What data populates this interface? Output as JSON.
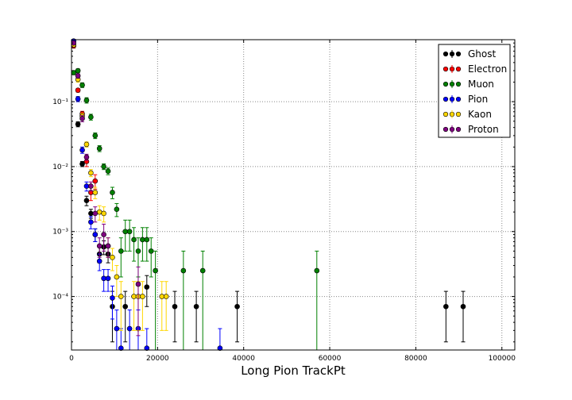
{
  "chart_data": {
    "type": "scatter",
    "title": "",
    "xlabel": "Long Pion TrackPt",
    "ylabel": "",
    "xlim": [
      0,
      103000
    ],
    "ylim": [
      1.5e-05,
      0.9
    ],
    "yscale": "log",
    "grid": true,
    "legend_position": "top-right",
    "x_ticks": [
      0,
      20000,
      40000,
      60000,
      80000,
      100000
    ],
    "x_tick_labels": [
      "0",
      "20000",
      "40000",
      "60000",
      "80000",
      "100000"
    ],
    "y_ticks": [
      0.0001,
      0.001,
      0.01,
      0.1
    ],
    "y_tick_labels": [
      "10⁻⁴",
      "10⁻³",
      "10⁻²",
      "10⁻¹"
    ],
    "series": [
      {
        "name": "Ghost",
        "color": "#000000",
        "points": [
          [
            1500,
            0.045,
            0.004
          ],
          [
            2500,
            0.011,
            0.001
          ],
          [
            3500,
            0.003,
            0.0005
          ],
          [
            4500,
            0.0019,
            0.0003
          ],
          [
            5500,
            0.0009,
            0.0002
          ],
          [
            6500,
            0.00045,
            0.00012
          ],
          [
            7500,
            0.00058,
            0.00014
          ],
          [
            8500,
            0.00045,
            0.00012
          ],
          [
            9500,
            7e-05,
            5e-05
          ],
          [
            12500,
            7e-05,
            5e-05
          ],
          [
            17500,
            0.00014,
            7e-05
          ],
          [
            24000,
            7e-05,
            5e-05
          ],
          [
            29000,
            7e-05,
            5e-05
          ],
          [
            38500,
            7e-05,
            5e-05
          ],
          [
            87000,
            7e-05,
            5e-05
          ],
          [
            91000,
            7e-05,
            5e-05
          ]
        ]
      },
      {
        "name": "Electron",
        "color": "#ff0000",
        "points": [
          [
            500,
            0.72,
            0.05
          ],
          [
            1500,
            0.15,
            0.01
          ],
          [
            2500,
            0.065,
            0.006
          ],
          [
            3500,
            0.012,
            0.002
          ],
          [
            4500,
            0.004,
            0.001
          ],
          [
            5500,
            0.006,
            0.0015
          ]
        ]
      },
      {
        "name": "Muon",
        "color": "#008000",
        "points": [
          [
            500,
            0.28,
            0.02
          ],
          [
            1500,
            0.3,
            0.02
          ],
          [
            2500,
            0.18,
            0.015
          ],
          [
            3500,
            0.105,
            0.01
          ],
          [
            4500,
            0.058,
            0.006
          ],
          [
            5500,
            0.03,
            0.003
          ],
          [
            6500,
            0.019,
            0.002
          ],
          [
            7500,
            0.01,
            0.001
          ],
          [
            8500,
            0.0085,
            0.001
          ],
          [
            9500,
            0.004,
            0.0008
          ],
          [
            10500,
            0.0022,
            0.0005
          ],
          [
            11500,
            0.0005,
            0.0003
          ],
          [
            12500,
            0.001,
            0.0005
          ],
          [
            13500,
            0.001,
            0.0005
          ],
          [
            14500,
            0.00075,
            0.0004
          ],
          [
            15500,
            0.0005,
            0.0003
          ],
          [
            16500,
            0.00075,
            0.0004
          ],
          [
            17500,
            0.00075,
            0.0004
          ],
          [
            18500,
            0.0005,
            0.0003
          ],
          [
            19500,
            0.00025,
            0.00025
          ],
          [
            26000,
            0.00025,
            0.00025
          ],
          [
            30500,
            0.00025,
            0.00025
          ],
          [
            57000,
            0.00025,
            0.00025
          ]
        ]
      },
      {
        "name": "Pion",
        "color": "#0000ff",
        "points": [
          [
            500,
            0.86,
            0.05
          ],
          [
            1500,
            0.11,
            0.01
          ],
          [
            2500,
            0.018,
            0.002
          ],
          [
            3500,
            0.005,
            0.0008
          ],
          [
            4500,
            0.0014,
            0.0003
          ],
          [
            5500,
            0.0009,
            0.0002
          ],
          [
            6500,
            0.00035,
            0.0001
          ],
          [
            7500,
            0.00019,
            7e-05
          ],
          [
            8500,
            0.00019,
            7e-05
          ],
          [
            9500,
            9.5e-05,
            5e-05
          ],
          [
            10500,
            3.2e-05,
            3e-05
          ],
          [
            11500,
            1.6e-05,
            1.6e-05
          ],
          [
            13500,
            3.2e-05,
            3e-05
          ],
          [
            15500,
            3.2e-05,
            3e-05
          ],
          [
            17500,
            1.6e-05,
            1.6e-05
          ],
          [
            34500,
            1.6e-05,
            1.6e-05
          ]
        ]
      },
      {
        "name": "Kaon",
        "color": "#ffd700",
        "points": [
          [
            500,
            0.75,
            0.05
          ],
          [
            1500,
            0.22,
            0.02
          ],
          [
            2500,
            0.06,
            0.006
          ],
          [
            3500,
            0.022,
            0.002
          ],
          [
            4500,
            0.008,
            0.001
          ],
          [
            5500,
            0.004,
            0.0008
          ],
          [
            6500,
            0.002,
            0.0005
          ],
          [
            7500,
            0.0019,
            0.0005
          ],
          [
            8500,
            0.0006,
            0.0002
          ],
          [
            9500,
            0.0004,
            0.00015
          ],
          [
            10500,
            0.0002,
            0.0001
          ],
          [
            11500,
            0.0001,
            7e-05
          ],
          [
            14500,
            0.0001,
            7e-05
          ],
          [
            15500,
            0.0001,
            7e-05
          ],
          [
            16500,
            0.0001,
            7e-05
          ],
          [
            21000,
            0.0001,
            7e-05
          ],
          [
            22000,
            0.0001,
            7e-05
          ]
        ]
      },
      {
        "name": "Proton",
        "color": "#800080",
        "points": [
          [
            500,
            0.8,
            0.05
          ],
          [
            1500,
            0.25,
            0.02
          ],
          [
            2500,
            0.055,
            0.006
          ],
          [
            3500,
            0.014,
            0.0015
          ],
          [
            4500,
            0.005,
            0.0008
          ],
          [
            5500,
            0.0019,
            0.0005
          ],
          [
            6500,
            0.0006,
            0.0002
          ],
          [
            7500,
            0.0009,
            0.0004
          ],
          [
            8500,
            0.0006,
            0.0002
          ],
          [
            15500,
            0.000155,
            0.00013
          ]
        ]
      }
    ]
  }
}
